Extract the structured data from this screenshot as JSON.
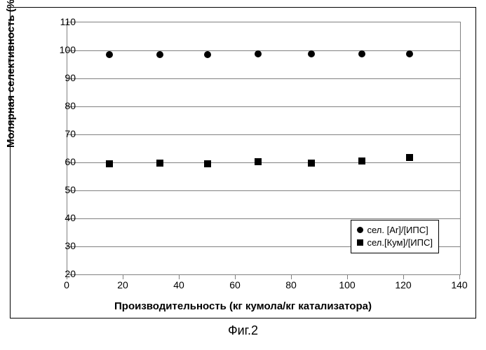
{
  "caption": "Фиг.2",
  "chart": {
    "type": "scatter",
    "xlabel": "Производительность (кг кумола/кг катализатора)",
    "ylabel": "Молярная селективность (%)",
    "label_fontsize": 15,
    "tick_fontsize": 14,
    "xlim": [
      0,
      140
    ],
    "ylim": [
      20,
      110
    ],
    "xtick_step": 20,
    "ytick_step": 10,
    "background_color": "#ffffff",
    "grid_color": "#808080",
    "border_color": "#000000",
    "text_color": "#000000",
    "series": [
      {
        "name": "сел. [Ar]/[ИПС]",
        "marker": "circle",
        "color": "#000000",
        "marker_size": 10,
        "points": [
          {
            "x": 15,
            "y": 98.5
          },
          {
            "x": 33,
            "y": 98.5
          },
          {
            "x": 50,
            "y": 98.5
          },
          {
            "x": 68,
            "y": 98.8
          },
          {
            "x": 87,
            "y": 98.7
          },
          {
            "x": 105,
            "y": 98.8
          },
          {
            "x": 122,
            "y": 98.8
          }
        ]
      },
      {
        "name": "сел.[Кум]/[ИПС]",
        "marker": "square",
        "color": "#000000",
        "marker_size": 10,
        "points": [
          {
            "x": 15,
            "y": 59.5
          },
          {
            "x": 33,
            "y": 59.8
          },
          {
            "x": 50,
            "y": 59.5
          },
          {
            "x": 68,
            "y": 60.3
          },
          {
            "x": 87,
            "y": 59.8
          },
          {
            "x": 105,
            "y": 60.5
          },
          {
            "x": 122,
            "y": 61.8
          }
        ]
      }
    ]
  }
}
